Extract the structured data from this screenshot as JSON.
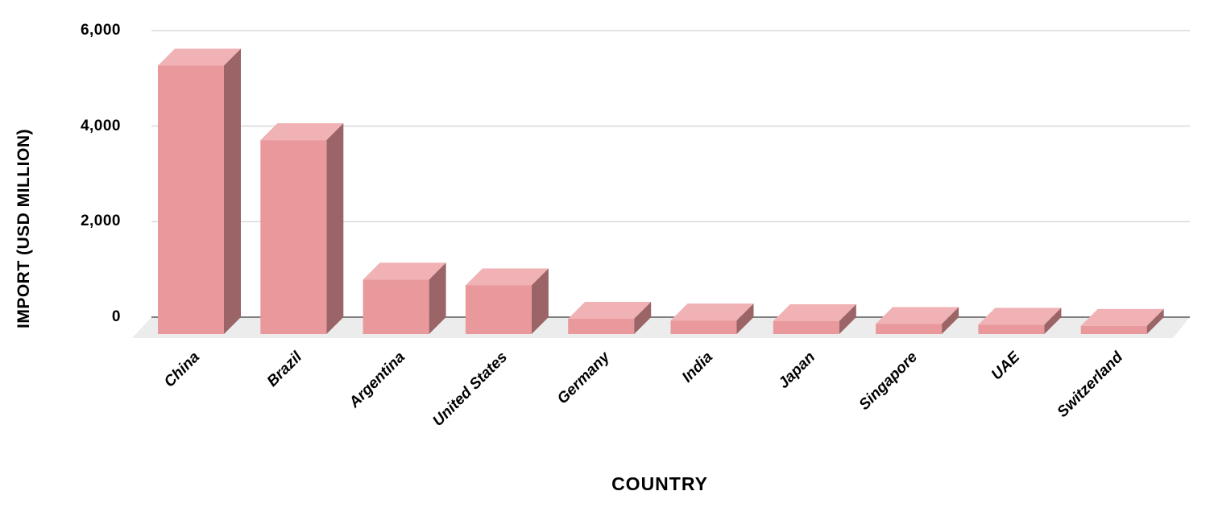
{
  "chart_data": {
    "type": "bar",
    "variant": "3d-column",
    "title": "",
    "xlabel": "COUNTRY",
    "ylabel": "IMPORT (USD MILLION)",
    "categories": [
      "China",
      "Brazil",
      "Argentina",
      "United States",
      "Germany",
      "India",
      "Japan",
      "Singapore",
      "UAE",
      "Switzerland"
    ],
    "values": [
      5620,
      4060,
      1140,
      1020,
      320,
      285,
      270,
      210,
      195,
      170
    ],
    "yticks": [
      0,
      2000,
      4000,
      6000
    ],
    "ytick_labels": [
      "0",
      "2,000",
      "4,000",
      "6,000"
    ],
    "ylim": [
      0,
      6000
    ],
    "grid": true,
    "legend": false,
    "colors": {
      "bar_front": "#E9999C",
      "bar_top": "#F0B2B4",
      "bar_side": "#9B6467",
      "floor": "#ECECEC",
      "baseline": "#7F7F7F",
      "gridline": "#D9D9D9",
      "text": "#000000",
      "background": "#FFFFFF"
    }
  }
}
